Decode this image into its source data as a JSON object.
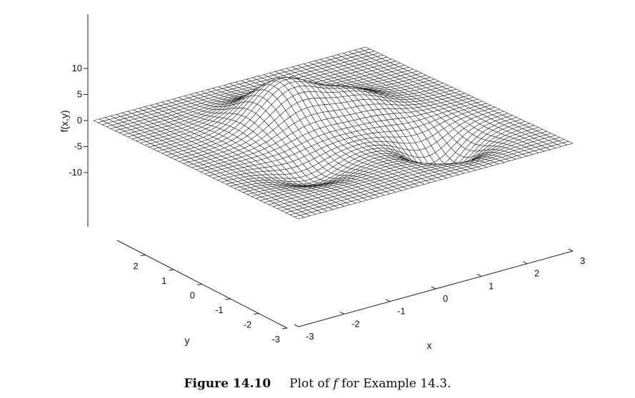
{
  "chart_data": {
    "type": "surface",
    "x": {
      "label": "x",
      "range": [
        -3,
        3
      ],
      "ticks": [
        "-3",
        "-2",
        "-1",
        "0",
        "1",
        "2",
        "3"
      ]
    },
    "y": {
      "label": "y",
      "range": [
        -3,
        3
      ],
      "ticks": [
        "-3",
        "-2",
        "-1",
        "0",
        "1",
        "2"
      ]
    },
    "z": {
      "label": "f(x,y)",
      "range": [
        -10,
        10
      ],
      "ticks": [
        "-10",
        "-5",
        "0",
        "5",
        "10"
      ]
    },
    "grid_resolution": 49,
    "surface_features": {
      "global_max": 8.1,
      "secondary_max": 3.6,
      "global_min": -6.5,
      "secondary_min": -3.0,
      "edge_value": 0
    },
    "line_color": "#1a1a1a",
    "background": "#ffffff"
  },
  "caption": {
    "label": "Figure 14.10",
    "prefix": "Plot of",
    "symbol": "f",
    "suffix": "for Example 14.3."
  }
}
